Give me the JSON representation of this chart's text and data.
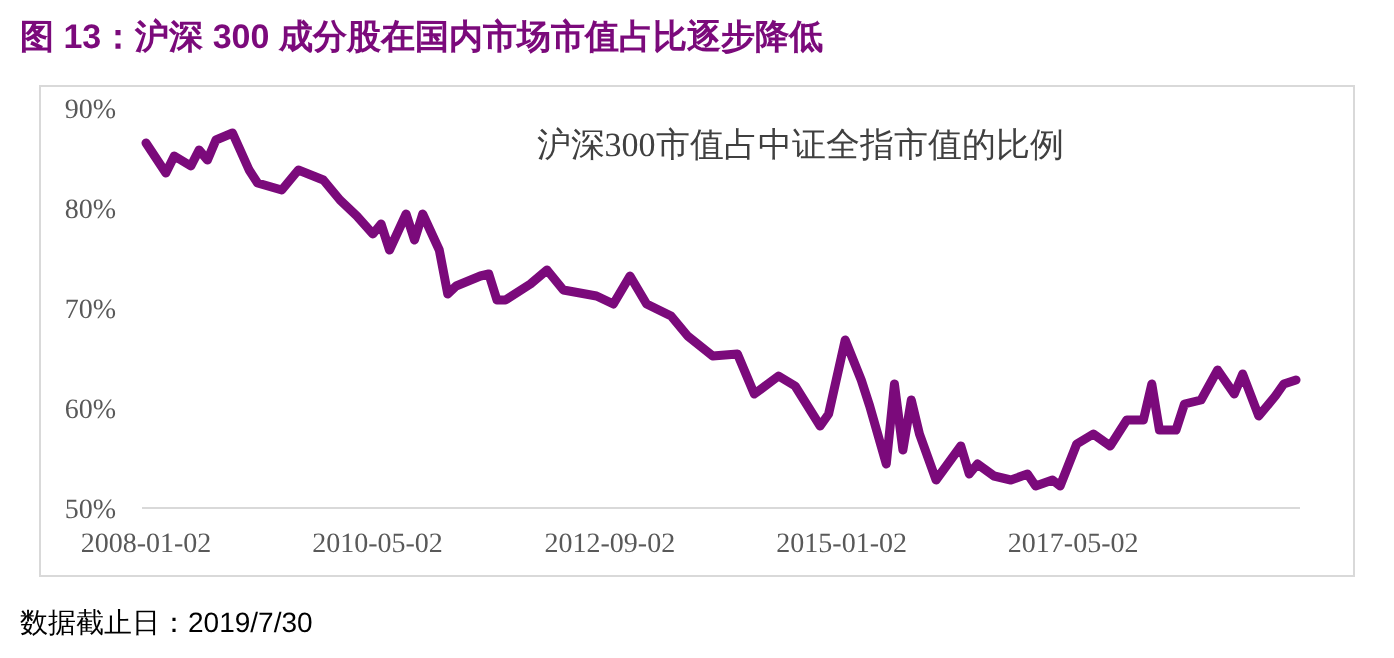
{
  "chart_data": {
    "type": "line",
    "title": "图 13：沪深 300 成分股在国内市场市值占比逐步降低",
    "annotations": [
      "沪深300市值占中证全指市值的比例",
      "数据截止日：2019/7/30"
    ],
    "x": [
      "2008-01-02",
      "2008-03-15",
      "2008-04-15",
      "2008-06-15",
      "2008-07-15",
      "2008-08-15",
      "2008-09-15",
      "2008-11-15",
      "2009-01-15",
      "2009-02-15",
      "2009-05-15",
      "2009-07-15",
      "2009-10-15",
      "2009-12-15",
      "2010-02-15",
      "2010-04-15",
      "2010-05-15",
      "2010-06-15",
      "2010-08-15",
      "2010-09-15",
      "2010-10-15",
      "2010-12-15",
      "2011-01-15",
      "2011-02-15",
      "2011-05-15",
      "2011-06-15",
      "2011-07-15",
      "2011-08-15",
      "2011-11-15",
      "2012-01-15",
      "2012-03-15",
      "2012-07-15",
      "2012-09-15",
      "2012-11-15",
      "2013-01-15",
      "2013-04-15",
      "2013-06-15",
      "2013-09-15",
      "2013-12-15",
      "2014-02-15",
      "2014-05-15",
      "2014-07-15",
      "2014-10-15",
      "2014-11-15",
      "2015-01-15",
      "2015-03-15",
      "2015-04-15",
      "2015-06-15",
      "2015-07-15",
      "2015-08-15",
      "2015-09-15",
      "2015-10-15",
      "2015-12-15",
      "2016-03-15",
      "2016-04-15",
      "2016-05-15",
      "2016-07-15",
      "2016-09-15",
      "2016-11-15",
      "2016-12-15",
      "2017-02-15",
      "2017-03-15",
      "2017-05-15",
      "2017-07-15",
      "2017-09-15",
      "2017-11-15",
      "2018-01-15",
      "2018-02-15",
      "2018-03-15",
      "2018-05-15",
      "2018-06-15",
      "2018-08-15",
      "2018-10-15",
      "2018-12-15",
      "2019-01-15",
      "2019-03-15",
      "2019-05-15",
      "2019-06-15",
      "2019-07-30"
    ],
    "series": [
      {
        "color": "#7b0a7b",
        "values": [
          86.5,
          83.5,
          85.2,
          84.2,
          85.8,
          84.8,
          86.8,
          87.5,
          83.8,
          82.5,
          81.8,
          83.8,
          82.8,
          80.8,
          79.2,
          77.4,
          78.4,
          75.8,
          79.4,
          76.8,
          79.4,
          75.8,
          71.4,
          72.2,
          73.2,
          73.4,
          70.8,
          70.8,
          72.4,
          73.8,
          71.8,
          71.2,
          70.4,
          73.2,
          70.4,
          69.2,
          67.2,
          65.2,
          65.4,
          61.4,
          63.2,
          62.2,
          58.2,
          59.4,
          66.8,
          62.8,
          60.2,
          54.4,
          62.4,
          55.8,
          60.8,
          57.4,
          52.8,
          56.2,
          53.4,
          54.4,
          53.2,
          52.8,
          53.4,
          52.2,
          52.8,
          52.2,
          56.4,
          57.4,
          56.2,
          58.8,
          58.8,
          62.4,
          57.8,
          57.8,
          60.4,
          60.8,
          63.8,
          61.4,
          63.4,
          59.2,
          61.2,
          62.4,
          62.8
        ]
      }
    ],
    "xlim": [
      "2008-01-02",
      "2019-07-30"
    ],
    "xticks": [
      {
        "value": "2008-01-02",
        "label": "2008-01-02"
      },
      {
        "value": "2010-05-02",
        "label": "2010-05-02"
      },
      {
        "value": "2012-09-02",
        "label": "2012-09-02"
      },
      {
        "value": "2015-01-02",
        "label": "2015-01-02"
      },
      {
        "value": "2017-05-02",
        "label": "2017-05-02"
      }
    ],
    "ylim": [
      50,
      90
    ],
    "yticks": [
      {
        "value": 50,
        "label": "50%"
      },
      {
        "value": 60,
        "label": "60%"
      },
      {
        "value": 70,
        "label": "70%"
      },
      {
        "value": 80,
        "label": "80%"
      },
      {
        "value": 90,
        "label": "90%"
      }
    ],
    "grid": false,
    "marker": "none",
    "line_style": "solid"
  }
}
